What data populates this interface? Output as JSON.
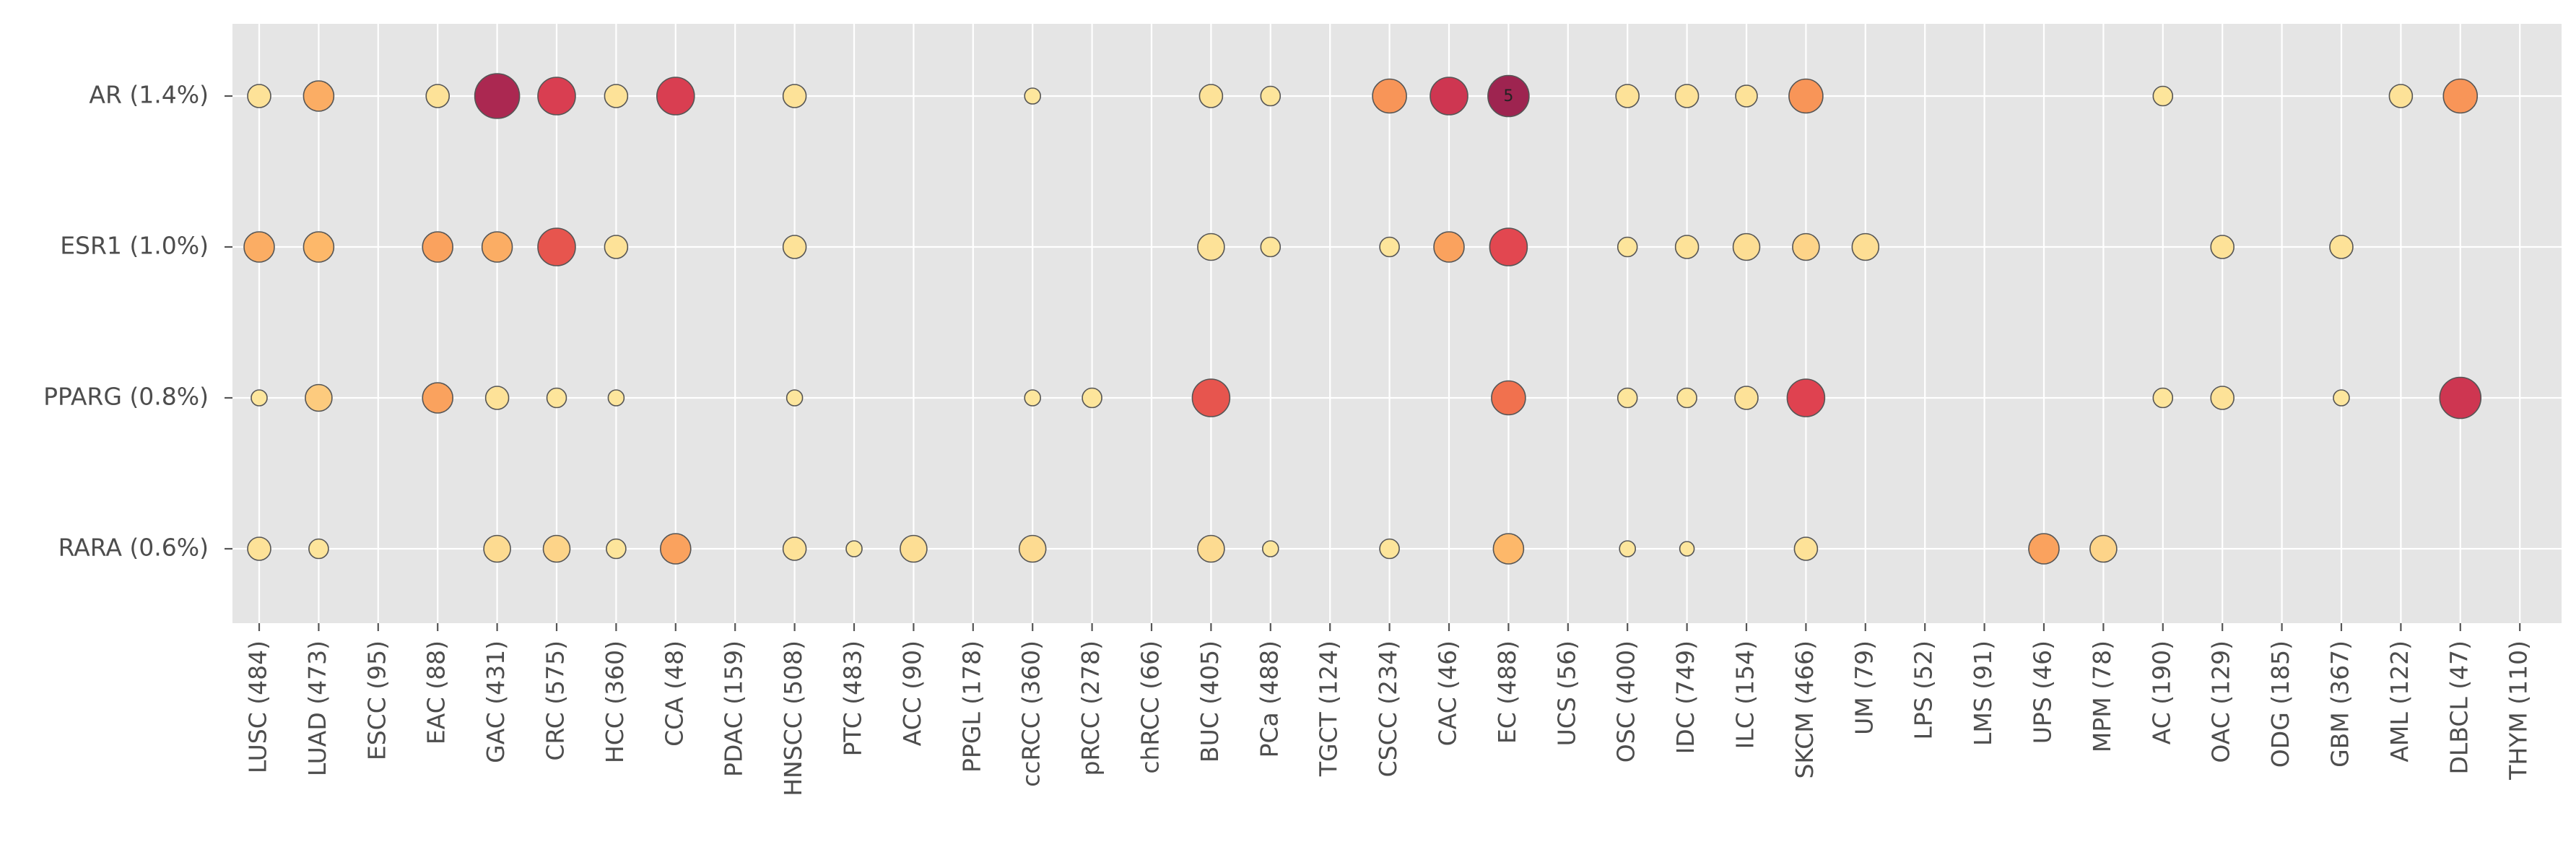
{
  "chart_data": {
    "type": "scatter",
    "title": "",
    "xlabel": "",
    "ylabel": "",
    "grid": true,
    "legend": "none",
    "colors": {
      "background": "#e5e5e5",
      "grid": "#ffffff",
      "marker_edge": "#555555",
      "scale": [
        "#fde9a0",
        "#fdd58a",
        "#fdbb6c",
        "#f99c5a",
        "#ef6a4c",
        "#e04350",
        "#c22e52",
        "#9e2450"
      ]
    },
    "categories": [
      "LUSC (484)",
      "LUAD (473)",
      "ESCC (95)",
      "EAC (88)",
      "GAC (431)",
      "CRC (575)",
      "HCC (360)",
      "CCA (48)",
      "PDAC (159)",
      "HNSCC (508)",
      "PTC (483)",
      "ACC (90)",
      "PPGL (178)",
      "ccRCC (360)",
      "pRCC (278)",
      "chRCC (66)",
      "BUC (405)",
      "PCa (488)",
      "TGCT (124)",
      "CSCC (234)",
      "CAC (46)",
      "EC (488)",
      "UCS (56)",
      "OSC (400)",
      "IDC (749)",
      "ILC (154)",
      "SKCM (466)",
      "UM (79)",
      "LPS (52)",
      "LMS (91)",
      "UPS (46)",
      "MPM (78)",
      "AC (190)",
      "OAC (129)",
      "ODG (185)",
      "GBM (367)",
      "AML (122)",
      "DLBCL (47)",
      "THYM (110)"
    ],
    "rows": [
      "AR (1.4%)",
      "ESR1 (1.0%)",
      "PPARG (0.8%)",
      "RARA (0.6%)"
    ],
    "points": [
      {
        "row": "AR (1.4%)",
        "category": "LUSC (484)",
        "size": 2,
        "level": 0.05
      },
      {
        "row": "AR (1.4%)",
        "category": "LUAD (473)",
        "size": 3,
        "level": 0.35
      },
      {
        "row": "AR (1.4%)",
        "category": "EAC (88)",
        "size": 2,
        "level": 0.05
      },
      {
        "row": "AR (1.4%)",
        "category": "GAC (431)",
        "size": 5,
        "level": 0.95
      },
      {
        "row": "AR (1.4%)",
        "category": "CRC (575)",
        "size": 4,
        "level": 0.75
      },
      {
        "row": "AR (1.4%)",
        "category": "HCC (360)",
        "size": 2,
        "level": 0.05
      },
      {
        "row": "AR (1.4%)",
        "category": "CCA (48)",
        "size": 4,
        "level": 0.75
      },
      {
        "row": "AR (1.4%)",
        "category": "HNSCC (508)",
        "size": 2,
        "level": 0.05
      },
      {
        "row": "AR (1.4%)",
        "category": "ccRCC (360)",
        "size": 1,
        "level": 0.02
      },
      {
        "row": "AR (1.4%)",
        "category": "BUC (405)",
        "size": 2,
        "level": 0.05
      },
      {
        "row": "AR (1.4%)",
        "category": "PCa (488)",
        "size": 1.5,
        "level": 0.03
      },
      {
        "row": "AR (1.4%)",
        "category": "CSCC (234)",
        "size": 3.5,
        "level": 0.45
      },
      {
        "row": "AR (1.4%)",
        "category": "CAC (46)",
        "size": 4,
        "level": 0.8
      },
      {
        "row": "AR (1.4%)",
        "category": "EC (488)",
        "size": 4.5,
        "level": 1.0,
        "label": "5"
      },
      {
        "row": "AR (1.4%)",
        "category": "OSC (400)",
        "size": 2,
        "level": 0.05
      },
      {
        "row": "AR (1.4%)",
        "category": "IDC (749)",
        "size": 2,
        "level": 0.05
      },
      {
        "row": "AR (1.4%)",
        "category": "ILC (154)",
        "size": 1.8,
        "level": 0.05
      },
      {
        "row": "AR (1.4%)",
        "category": "SKCM (466)",
        "size": 3.5,
        "level": 0.45
      },
      {
        "row": "AR (1.4%)",
        "category": "AC (190)",
        "size": 1.5,
        "level": 0.03
      },
      {
        "row": "AR (1.4%)",
        "category": "AML (122)",
        "size": 2,
        "level": 0.05
      },
      {
        "row": "AR (1.4%)",
        "category": "DLBCL (47)",
        "size": 3.5,
        "level": 0.45
      },
      {
        "row": "ESR1 (1.0%)",
        "category": "LUSC (484)",
        "size": 3,
        "level": 0.35
      },
      {
        "row": "ESR1 (1.0%)",
        "category": "LUAD (473)",
        "size": 3,
        "level": 0.3
      },
      {
        "row": "ESR1 (1.0%)",
        "category": "EAC (88)",
        "size": 3,
        "level": 0.4
      },
      {
        "row": "ESR1 (1.0%)",
        "category": "GAC (431)",
        "size": 3,
        "level": 0.35
      },
      {
        "row": "ESR1 (1.0%)",
        "category": "CRC (575)",
        "size": 4,
        "level": 0.65
      },
      {
        "row": "ESR1 (1.0%)",
        "category": "HCC (360)",
        "size": 2,
        "level": 0.05
      },
      {
        "row": "ESR1 (1.0%)",
        "category": "HNSCC (508)",
        "size": 2,
        "level": 0.05
      },
      {
        "row": "ESR1 (1.0%)",
        "category": "BUC (405)",
        "size": 2.5,
        "level": 0.05
      },
      {
        "row": "ESR1 (1.0%)",
        "category": "PCa (488)",
        "size": 1.5,
        "level": 0.03
      },
      {
        "row": "ESR1 (1.0%)",
        "category": "CSCC (234)",
        "size": 1.5,
        "level": 0.03
      },
      {
        "row": "ESR1 (1.0%)",
        "category": "CAC (46)",
        "size": 3,
        "level": 0.4
      },
      {
        "row": "ESR1 (1.0%)",
        "category": "EC (488)",
        "size": 4,
        "level": 0.7
      },
      {
        "row": "ESR1 (1.0%)",
        "category": "OSC (400)",
        "size": 1.5,
        "level": 0.03
      },
      {
        "row": "ESR1 (1.0%)",
        "category": "IDC (749)",
        "size": 2,
        "level": 0.05
      },
      {
        "row": "ESR1 (1.0%)",
        "category": "ILC (154)",
        "size": 2.5,
        "level": 0.08
      },
      {
        "row": "ESR1 (1.0%)",
        "category": "SKCM (466)",
        "size": 2.5,
        "level": 0.15
      },
      {
        "row": "ESR1 (1.0%)",
        "category": "UM (79)",
        "size": 2.5,
        "level": 0.08
      },
      {
        "row": "ESR1 (1.0%)",
        "category": "OAC (129)",
        "size": 2,
        "level": 0.05
      },
      {
        "row": "ESR1 (1.0%)",
        "category": "GBM (367)",
        "size": 2,
        "level": 0.05
      },
      {
        "row": "PPARG (0.8%)",
        "category": "LUSC (484)",
        "size": 1,
        "level": 0.02
      },
      {
        "row": "PPARG (0.8%)",
        "category": "LUAD (473)",
        "size": 2.5,
        "level": 0.2
      },
      {
        "row": "PPARG (0.8%)",
        "category": "EAC (88)",
        "size": 3,
        "level": 0.4
      },
      {
        "row": "PPARG (0.8%)",
        "category": "GAC (431)",
        "size": 2,
        "level": 0.05
      },
      {
        "row": "PPARG (0.8%)",
        "category": "CRC (575)",
        "size": 1.5,
        "level": 0.03
      },
      {
        "row": "PPARG (0.8%)",
        "category": "HCC (360)",
        "size": 1,
        "level": 0.02
      },
      {
        "row": "PPARG (0.8%)",
        "category": "HNSCC (508)",
        "size": 1,
        "level": 0.02
      },
      {
        "row": "PPARG (0.8%)",
        "category": "ccRCC (360)",
        "size": 1,
        "level": 0.02
      },
      {
        "row": "PPARG (0.8%)",
        "category": "pRCC (278)",
        "size": 1.5,
        "level": 0.03
      },
      {
        "row": "PPARG (0.8%)",
        "category": "BUC (405)",
        "size": 4,
        "level": 0.65
      },
      {
        "row": "PPARG (0.8%)",
        "category": "EC (488)",
        "size": 3.5,
        "level": 0.55
      },
      {
        "row": "PPARG (0.8%)",
        "category": "OSC (400)",
        "size": 1.5,
        "level": 0.03
      },
      {
        "row": "PPARG (0.8%)",
        "category": "IDC (749)",
        "size": 1.5,
        "level": 0.03
      },
      {
        "row": "PPARG (0.8%)",
        "category": "ILC (154)",
        "size": 2,
        "level": 0.05
      },
      {
        "row": "PPARG (0.8%)",
        "category": "SKCM (466)",
        "size": 4,
        "level": 0.72
      },
      {
        "row": "PPARG (0.8%)",
        "category": "AC (190)",
        "size": 1.5,
        "level": 0.03
      },
      {
        "row": "PPARG (0.8%)",
        "category": "OAC (129)",
        "size": 2,
        "level": 0.05
      },
      {
        "row": "PPARG (0.8%)",
        "category": "GBM (367)",
        "size": 1,
        "level": 0.02
      },
      {
        "row": "PPARG (0.8%)",
        "category": "DLBCL (47)",
        "size": 4.5,
        "level": 0.8
      },
      {
        "row": "RARA (0.6%)",
        "category": "LUSC (484)",
        "size": 2,
        "level": 0.05
      },
      {
        "row": "RARA (0.6%)",
        "category": "LUAD (473)",
        "size": 1.5,
        "level": 0.03
      },
      {
        "row": "RARA (0.6%)",
        "category": "GAC (431)",
        "size": 2.5,
        "level": 0.1
      },
      {
        "row": "RARA (0.6%)",
        "category": "CRC (575)",
        "size": 2.5,
        "level": 0.15
      },
      {
        "row": "RARA (0.6%)",
        "category": "HCC (360)",
        "size": 1.5,
        "level": 0.03
      },
      {
        "row": "RARA (0.6%)",
        "category": "CCA (48)",
        "size": 3,
        "level": 0.4
      },
      {
        "row": "RARA (0.6%)",
        "category": "HNSCC (508)",
        "size": 2,
        "level": 0.05
      },
      {
        "row": "RARA (0.6%)",
        "category": "PTC (483)",
        "size": 1,
        "level": 0.02
      },
      {
        "row": "RARA (0.6%)",
        "category": "ACC (90)",
        "size": 2.5,
        "level": 0.08
      },
      {
        "row": "RARA (0.6%)",
        "category": "ccRCC (360)",
        "size": 2.5,
        "level": 0.1
      },
      {
        "row": "RARA (0.6%)",
        "category": "BUC (405)",
        "size": 2.5,
        "level": 0.1
      },
      {
        "row": "RARA (0.6%)",
        "category": "PCa (488)",
        "size": 1,
        "level": 0.02
      },
      {
        "row": "RARA (0.6%)",
        "category": "CSCC (234)",
        "size": 1.5,
        "level": 0.03
      },
      {
        "row": "RARA (0.6%)",
        "category": "EC (488)",
        "size": 3,
        "level": 0.3
      },
      {
        "row": "RARA (0.6%)",
        "category": "OSC (400)",
        "size": 1,
        "level": 0.02
      },
      {
        "row": "RARA (0.6%)",
        "category": "IDC (749)",
        "size": 0.8,
        "level": 0.02
      },
      {
        "row": "RARA (0.6%)",
        "category": "SKCM (466)",
        "size": 2,
        "level": 0.05
      },
      {
        "row": "RARA (0.6%)",
        "category": "UPS (46)",
        "size": 3,
        "level": 0.4
      },
      {
        "row": "RARA (0.6%)",
        "category": "MPM (78)",
        "size": 2.5,
        "level": 0.15
      }
    ]
  }
}
